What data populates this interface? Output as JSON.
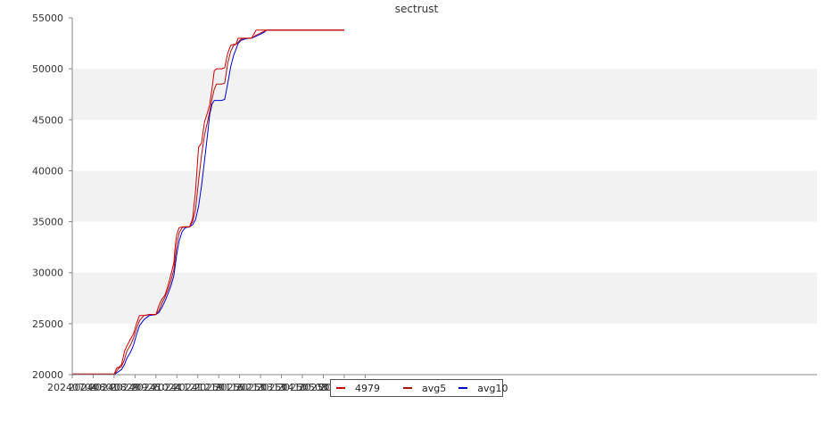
{
  "chart_data": {
    "type": "line",
    "title": "sectrust",
    "xlabel": "",
    "ylabel": "",
    "ylim": [
      20000,
      55000
    ],
    "y_ticks": [
      20000,
      25000,
      30000,
      35000,
      40000,
      45000,
      50000,
      55000
    ],
    "x_tick_labels": [
      "20240704",
      "20240801",
      "20240829",
      "20240926",
      "20241024",
      "20241121",
      "20241219",
      "20250116",
      "20250213",
      "20250313",
      "20250410",
      "20250508",
      "20250605",
      "20250703",
      "20250731"
    ],
    "grid": "alternating horizontal bands",
    "legend_position": "bottom-center",
    "colors": {
      "4979": "#cc0000",
      "avg5": "#aa1111",
      "avg10": "#0000cc",
      "band": "#f2f2f2",
      "axis": "#888888"
    },
    "x_dates": [
      "20240704",
      "20240829",
      "20240831",
      "20240902",
      "20240904",
      "20240908",
      "20240912",
      "20240915",
      "20240920",
      "20240924",
      "20240928",
      "20241002",
      "20241008",
      "20241015",
      "20241024",
      "20241028",
      "20241101",
      "20241105",
      "20241109",
      "20241113",
      "20241117",
      "20241119",
      "20241121",
      "20241124",
      "20241128",
      "20241202",
      "20241208",
      "20241212",
      "20241216",
      "20241220",
      "20241224",
      "20241228",
      "20250101",
      "20250104",
      "20250107",
      "20250110",
      "20250113",
      "20250115",
      "20250118",
      "20250120",
      "20250124",
      "20250128",
      "20250201",
      "20250205",
      "20250208",
      "20250211",
      "20250215",
      "20250219",
      "20250225",
      "20250301",
      "20250307",
      "20250313",
      "20250318",
      "20250321",
      "20250325",
      "20250703"
    ],
    "series": [
      {
        "name": "4979",
        "values": [
          20050,
          20050,
          20400,
          20700,
          20700,
          21000,
          22300,
          22800,
          23500,
          24000,
          25000,
          25800,
          25800,
          25900,
          25900,
          26800,
          27400,
          27800,
          28700,
          29800,
          31000,
          32800,
          33800,
          34400,
          34500,
          34500,
          34500,
          35300,
          38000,
          42300,
          42700,
          44800,
          45700,
          46500,
          48000,
          49800,
          50000,
          50000,
          50000,
          50000,
          50100,
          51500,
          52300,
          52400,
          52400,
          53000,
          53000,
          53000,
          53000,
          53000,
          53800,
          53800,
          53800,
          53800,
          53800,
          53800
        ]
      },
      {
        "name": "avg5",
        "values": [
          20050,
          20050,
          20200,
          20400,
          20600,
          20800,
          21500,
          22300,
          22900,
          23600,
          24500,
          25300,
          25800,
          25900,
          25900,
          26300,
          27000,
          27600,
          28300,
          29200,
          30300,
          31600,
          32800,
          33900,
          34400,
          34500,
          34500,
          35000,
          36200,
          39000,
          41500,
          43500,
          44800,
          45800,
          47000,
          48000,
          48500,
          48500,
          48500,
          48500,
          48600,
          50500,
          51700,
          52300,
          52400,
          52600,
          52900,
          53000,
          53000,
          53000,
          53300,
          53500,
          53700,
          53800,
          53800,
          53800
        ]
      },
      {
        "name": "avg10",
        "values": [
          20050,
          20050,
          20100,
          20200,
          20300,
          20500,
          21000,
          21600,
          22200,
          22900,
          23900,
          24800,
          25400,
          25800,
          25900,
          26100,
          26600,
          27200,
          27900,
          28700,
          29700,
          30800,
          31900,
          33100,
          34000,
          34400,
          34500,
          34700,
          35200,
          36500,
          38500,
          41000,
          43500,
          45500,
          46500,
          46900,
          46900,
          46900,
          46900,
          46900,
          47000,
          48500,
          50200,
          51300,
          51900,
          52500,
          52800,
          52900,
          53000,
          53000,
          53200,
          53400,
          53600,
          53800,
          53800,
          53800
        ]
      }
    ],
    "legend": [
      "4979",
      "avg5",
      "avg10"
    ]
  }
}
